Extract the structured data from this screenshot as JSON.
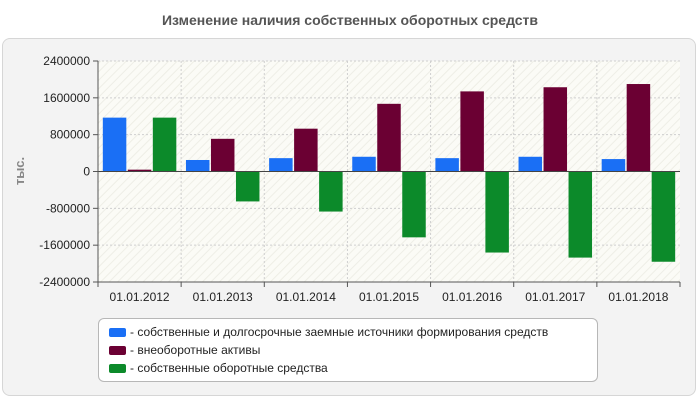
{
  "chart_data": {
    "type": "bar",
    "title": "Изменение наличия собственных оборотных средств",
    "ylabel": "тыс.",
    "xlabel": "",
    "ylim": [
      -2400000,
      2400000
    ],
    "yticks": [
      2400000,
      1600000,
      800000,
      0,
      -800000,
      -1600000,
      -2400000
    ],
    "ytick_labels": [
      "2400000",
      "1600000",
      "800000",
      "0",
      "-800000",
      "-1600000",
      "-2400000"
    ],
    "categories": [
      "01.01.2012",
      "01.01.2013",
      "01.01.2014",
      "01.01.2015",
      "01.01.2016",
      "01.01.2017",
      "01.01.2018"
    ],
    "series": [
      {
        "name": "- собственные и долгосрочные заемные источники формирования средств",
        "color": "#1a6ff5",
        "values": [
          1170000,
          250000,
          290000,
          320000,
          290000,
          320000,
          270000
        ]
      },
      {
        "name": "- внеоборотные активы",
        "color": "#6b0033",
        "values": [
          40000,
          710000,
          930000,
          1470000,
          1740000,
          1830000,
          1900000
        ]
      },
      {
        "name": "- собственные оборотные средства",
        "color": "#0c8a2a",
        "values": [
          1170000,
          -650000,
          -870000,
          -1430000,
          -1760000,
          -1870000,
          -1960000
        ]
      }
    ],
    "grid": true,
    "legend_position": "bottom"
  }
}
